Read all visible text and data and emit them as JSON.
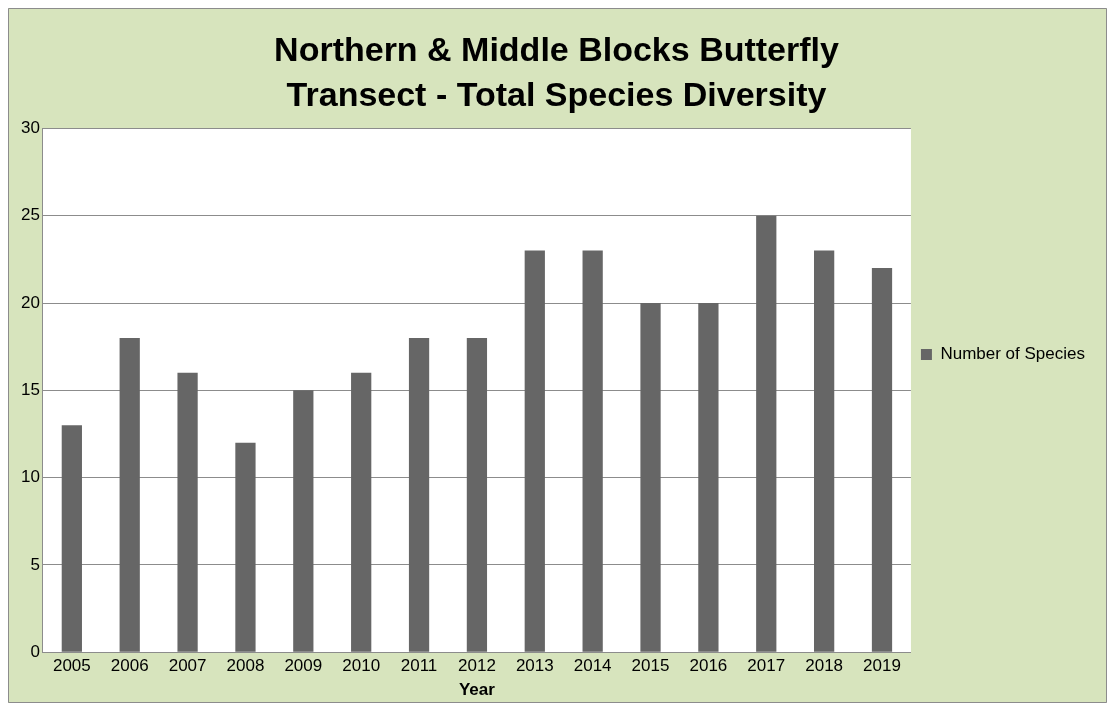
{
  "chart_data": {
    "type": "bar",
    "title": "Northern & Middle Blocks Butterfly Transect - Total Species Diversity",
    "xlabel": "Year",
    "categories": [
      "2005",
      "2006",
      "2007",
      "2008",
      "2009",
      "2010",
      "2011",
      "2012",
      "2013",
      "2014",
      "2015",
      "2016",
      "2017",
      "2018",
      "2019"
    ],
    "series": [
      {
        "name": "Number of Species",
        "color": "#666666",
        "values": [
          13,
          18,
          16,
          12,
          15,
          16,
          18,
          18,
          23,
          23,
          20,
          20,
          25,
          23,
          22
        ]
      }
    ],
    "ylim": [
      0,
      30
    ],
    "yticks": [
      0,
      5,
      10,
      15,
      20,
      25,
      30
    ],
    "grid": "y",
    "legend": "right"
  }
}
